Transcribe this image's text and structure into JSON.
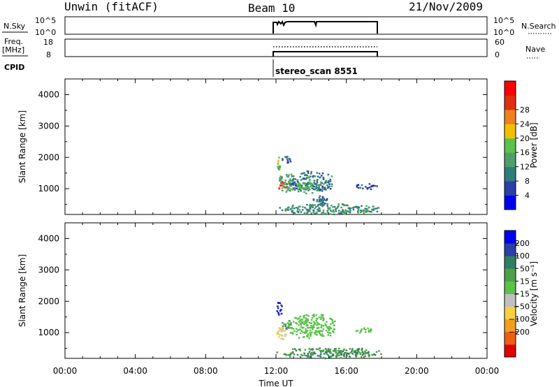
{
  "header": {
    "station": "Unwin (fitACF)",
    "beam": "Beam 10",
    "date": "21/Nov/2009"
  },
  "summary_panels": {
    "nsky_label": "N.Sky",
    "nsearch_label": "N.Search",
    "nsky_ticks": [
      "10^5",
      "10^0"
    ],
    "nsky_right_ticks": [
      "10^5",
      "10^0"
    ],
    "freq_label": "Freq.",
    "freq_unit": "[MHz]",
    "freq_ticks": [
      "18",
      "8"
    ],
    "nave_label": "Nave",
    "nave_ticks": [
      "60",
      "0"
    ],
    "cpid_label": "CPID",
    "cpid_text": "stereo_scan 8551"
  },
  "chart_data": [
    {
      "type": "heatmap",
      "name": "power-panel",
      "ylabel": "Slant Range [km]",
      "ylim": [
        180,
        4500
      ],
      "yticks": [
        "1000",
        "2000",
        "3000",
        "4000"
      ],
      "xlim": [
        "00:00",
        "24:00"
      ],
      "colorbar": {
        "label": "Power [dB]",
        "ticks": [
          "4",
          "8",
          "12",
          "16",
          "20",
          "24",
          "28"
        ],
        "colors": [
          "#0000ee",
          "#2b3fa6",
          "#2f7d78",
          "#4f9f6a",
          "#5bc24a",
          "#f0c000",
          "#f08020",
          "#e03010",
          "#ff0000"
        ]
      },
      "blobs": [
        {
          "t0": 12.0,
          "t1": 12.25,
          "r0": 1600,
          "r1": 2100,
          "v": 18
        },
        {
          "t0": 12.0,
          "t1": 12.6,
          "r0": 950,
          "r1": 1250,
          "v": 28
        },
        {
          "t0": 12.1,
          "t1": 13.0,
          "r0": 900,
          "r1": 1550,
          "v": 14
        },
        {
          "t0": 12.5,
          "t1": 15.3,
          "r0": 850,
          "r1": 1600,
          "v": 10
        },
        {
          "t0": 13.0,
          "t1": 14.2,
          "r0": 950,
          "r1": 1250,
          "v": 16
        },
        {
          "t0": 12.3,
          "t1": 12.8,
          "r0": 1800,
          "r1": 2100,
          "v": 8
        },
        {
          "t0": 12.0,
          "t1": 18.0,
          "r0": 200,
          "r1": 550,
          "v": 12
        },
        {
          "t0": 14.0,
          "t1": 15.0,
          "r0": 500,
          "r1": 800,
          "v": 8
        },
        {
          "t0": 16.4,
          "t1": 17.8,
          "r0": 1000,
          "r1": 1180,
          "v": 6
        }
      ]
    },
    {
      "type": "heatmap",
      "name": "velocity-panel",
      "ylabel": "Slant Range [km]",
      "ylim": [
        180,
        4500
      ],
      "yticks": [
        "1000",
        "2000",
        "3000",
        "4000"
      ],
      "xlim": [
        "00:00",
        "24:00"
      ],
      "xlabel": "Time UT",
      "xticks": [
        "00:00",
        "04:00",
        "08:00",
        "12:00",
        "16:00",
        "20:00",
        "00:00"
      ],
      "colorbar": {
        "label": "Velocity [m s⁻¹]",
        "ticks": [
          "200",
          "100",
          "50",
          "15",
          "−15",
          "−50",
          "−100",
          "−200"
        ],
        "colors": [
          "#0000ee",
          "#2b3fa6",
          "#2f8060",
          "#4f9f4a",
          "#5bc24a",
          "#c0c0c0",
          "#f8d040",
          "#f0a020",
          "#f06010",
          "#e00000"
        ]
      },
      "blobs": [
        {
          "t0": 12.0,
          "t1": 12.3,
          "r0": 1500,
          "r1": 2100,
          "v": 200
        },
        {
          "t0": 12.0,
          "t1": 12.6,
          "r0": 800,
          "r1": 1250,
          "v": -50
        },
        {
          "t0": 12.2,
          "t1": 12.9,
          "r0": 1100,
          "r1": 1450,
          "v": 50
        },
        {
          "t0": 12.6,
          "t1": 15.4,
          "r0": 800,
          "r1": 1650,
          "v": 0
        },
        {
          "t0": 12.0,
          "t1": 18.0,
          "r0": 200,
          "r1": 550,
          "v": 50
        },
        {
          "t0": 16.4,
          "t1": 17.8,
          "r0": 1000,
          "r1": 1180,
          "v": 0
        }
      ]
    }
  ]
}
